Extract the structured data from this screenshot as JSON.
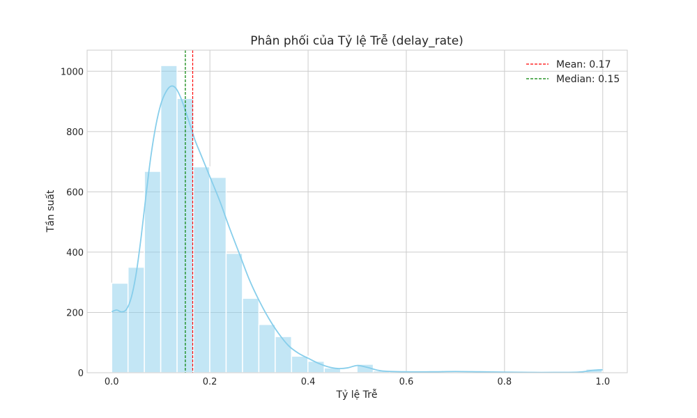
{
  "chart_data": {
    "type": "bar",
    "title": "Phân phối của Tỷ lệ Trễ (delay_rate)",
    "xlabel": "Tỷ lệ Trễ",
    "ylabel": "Tần suất",
    "xlim": [
      -0.05,
      1.05
    ],
    "ylim": [
      0,
      1070
    ],
    "x_ticks": [
      0.0,
      0.2,
      0.4,
      0.6,
      0.8,
      1.0
    ],
    "x_tick_labels": [
      "0.0",
      "0.2",
      "0.4",
      "0.6",
      "0.8",
      "1.0"
    ],
    "y_ticks": [
      0,
      200,
      400,
      600,
      800,
      1000
    ],
    "y_tick_labels": [
      "0",
      "200",
      "400",
      "600",
      "800",
      "1000"
    ],
    "grid": true,
    "bins": {
      "start": 0.0,
      "width": 0.0333,
      "counts": [
        297,
        350,
        668,
        1019,
        910,
        683,
        648,
        396,
        247,
        160,
        120,
        55,
        38,
        16,
        0,
        28,
        6,
        4,
        3,
        2,
        1,
        2,
        1,
        1,
        1,
        1,
        1,
        1,
        2,
        12
      ]
    },
    "bar_color": "#87ceeb",
    "kde": {
      "name": "KDE",
      "color": "#87ceeb",
      "x": [
        0.0,
        0.01,
        0.02,
        0.03,
        0.04,
        0.05,
        0.06,
        0.07,
        0.08,
        0.09,
        0.1,
        0.11,
        0.12,
        0.13,
        0.14,
        0.15,
        0.16,
        0.17,
        0.18,
        0.19,
        0.2,
        0.22,
        0.24,
        0.26,
        0.28,
        0.3,
        0.32,
        0.34,
        0.36,
        0.38,
        0.4,
        0.42,
        0.44,
        0.46,
        0.48,
        0.5,
        0.52,
        0.55,
        0.6,
        0.65,
        0.7,
        0.75,
        0.8,
        0.85,
        0.9,
        0.95,
        0.98,
        1.0
      ],
      "y": [
        202,
        208,
        202,
        210,
        250,
        330,
        450,
        590,
        720,
        820,
        890,
        930,
        950,
        945,
        915,
        870,
        820,
        770,
        730,
        690,
        650,
        570,
        480,
        395,
        310,
        240,
        180,
        130,
        90,
        65,
        48,
        32,
        20,
        14,
        16,
        24,
        18,
        6,
        3,
        3,
        4,
        3,
        2,
        1,
        1,
        2,
        8,
        10
      ]
    },
    "lines": [
      {
        "name": "Mean: 0.17",
        "x": 0.165,
        "color": "#ff0000"
      },
      {
        "name": "Median: 0.15",
        "x": 0.15,
        "color": "#008000"
      }
    ],
    "legend_position": "top-right"
  }
}
